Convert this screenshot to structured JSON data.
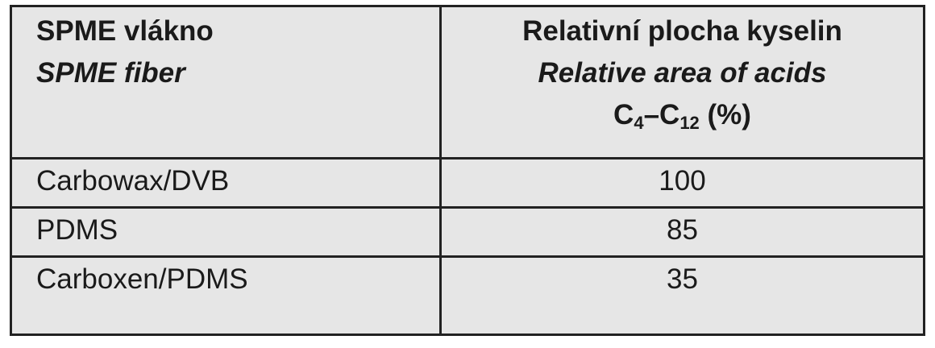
{
  "header": {
    "col1": {
      "cz": "SPME vlákno",
      "en": "SPME fiber"
    },
    "col2": {
      "cz": "Relativní plocha kyselin",
      "en": "Relative area of acids",
      "range_c": "C",
      "range_start": "4",
      "range_dash": "–C",
      "range_end": "12",
      "unit": " (%)"
    }
  },
  "rows": [
    {
      "fiber": "Carbowax/DVB",
      "value": "100"
    },
    {
      "fiber": "PDMS",
      "value": "85"
    },
    {
      "fiber": "Carboxen/PDMS",
      "value": "35"
    }
  ],
  "colors": {
    "background": "#e6e6e6",
    "border": "#222222"
  }
}
